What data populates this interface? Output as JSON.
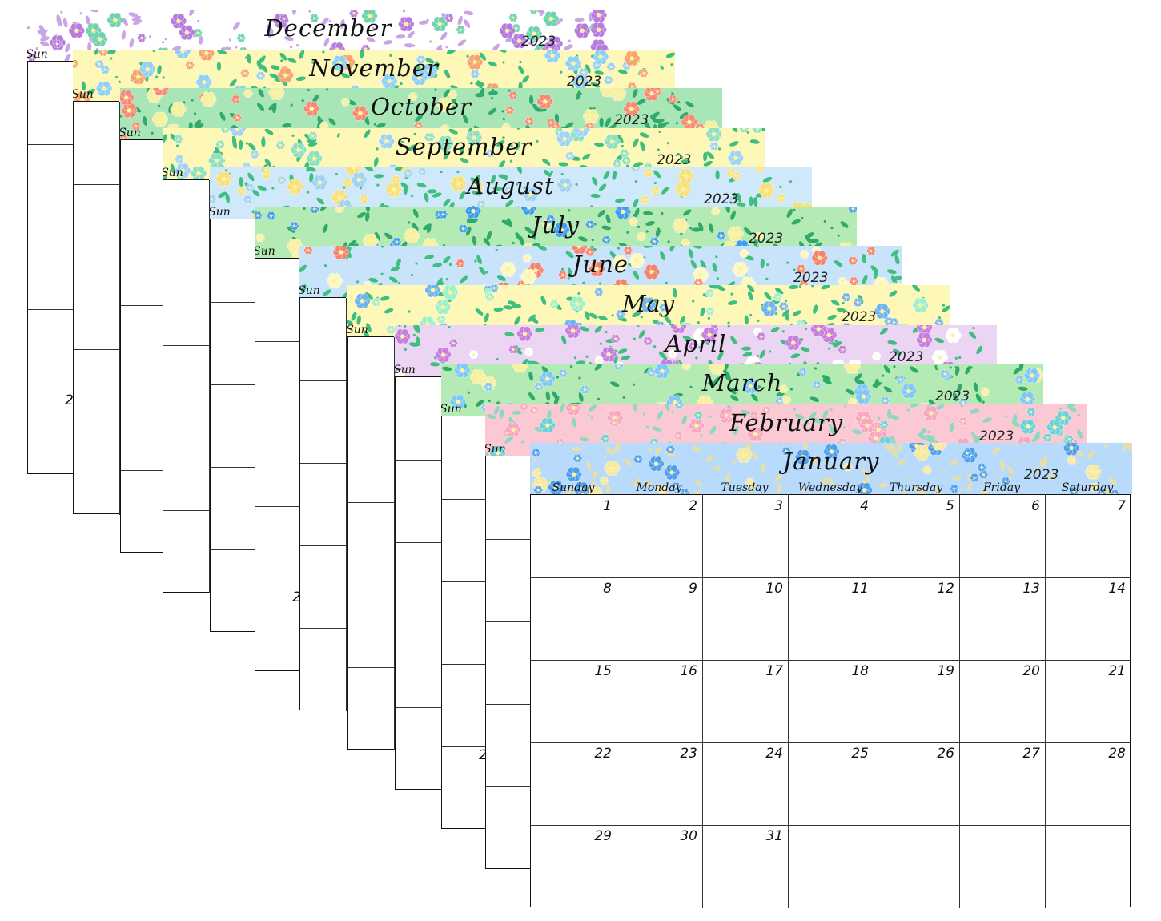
{
  "year": "2023",
  "months": [
    {
      "name": "December",
      "bg": "#ffffff",
      "leaf": "#c9a5e8",
      "flower": "#b77be0",
      "flower2": "#6fd3b0"
    },
    {
      "name": "November",
      "bg": "#fdf7b8",
      "leaf": "#3fbf7f",
      "flower": "#8fd0f5",
      "flower2": "#f6a46b"
    },
    {
      "name": "October",
      "bg": "#a8e6b8",
      "leaf": "#2faa6a",
      "flower": "#f58a75",
      "flower2": "#f3f0a0"
    },
    {
      "name": "September",
      "bg": "#fdf7b8",
      "leaf": "#3fbf7f",
      "flower": "#8fe0c0",
      "flower2": "#9fd3f5"
    },
    {
      "name": "August",
      "bg": "#cfe9fb",
      "leaf": "#3fbf7f",
      "flower": "#f7e07a",
      "flower2": "#9fd3f5"
    },
    {
      "name": "July",
      "bg": "#b4eab4",
      "leaf": "#2faa6a",
      "flower": "#3f9ef0",
      "flower2": "#f7f0a0"
    },
    {
      "name": "June",
      "bg": "#c9e3fb",
      "leaf": "#3fbf7f",
      "flower": "#f5826e",
      "flower2": "#fdf7c0"
    },
    {
      "name": "May",
      "bg": "#fdf7b8",
      "leaf": "#3fbf7f",
      "flower": "#6fb4f0",
      "flower2": "#9ff0c8"
    },
    {
      "name": "April",
      "bg": "#ecd5f3",
      "leaf": "#3fbf7f",
      "flower": "#c77ee0",
      "flower2": "#ffffff"
    },
    {
      "name": "March",
      "bg": "#b4eab4",
      "leaf": "#2faa6a",
      "flower": "#7fc8f5",
      "flower2": "#f7f0a0"
    },
    {
      "name": "February",
      "bg": "#fbc9d3",
      "leaf": "#8fd8c0",
      "flower": "#f7a8c0",
      "flower2": "#6fd0d8"
    },
    {
      "name": "January",
      "bg": "#b9dbfb",
      "leaf": "#e8dfa8",
      "flower": "#4fa0f0",
      "flower2": "#f7e8a0"
    }
  ],
  "back_dow_label": "Sun",
  "peek_labels": [
    "2",
    "2",
    "2"
  ],
  "weekdays": [
    "Sunday",
    "Monday",
    "Tuesday",
    "Wednesday",
    "Thursday",
    "Friday",
    "Saturday"
  ],
  "january_days": [
    [
      "1",
      "2",
      "3",
      "4",
      "5",
      "6",
      "7"
    ],
    [
      "8",
      "9",
      "10",
      "11",
      "12",
      "13",
      "14"
    ],
    [
      "15",
      "16",
      "17",
      "18",
      "19",
      "20",
      "21"
    ],
    [
      "22",
      "23",
      "24",
      "25",
      "26",
      "27",
      "28"
    ],
    [
      "29",
      "30",
      "31",
      "",
      "",
      "",
      ""
    ]
  ]
}
